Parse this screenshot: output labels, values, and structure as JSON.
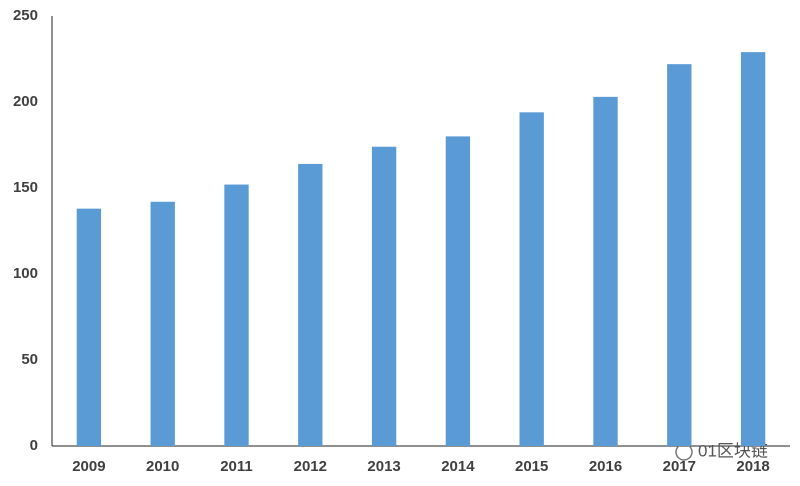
{
  "chart_data": {
    "type": "bar",
    "categories": [
      "2009",
      "2010",
      "2011",
      "2012",
      "2013",
      "2014",
      "2015",
      "2016",
      "2017",
      "2018"
    ],
    "values": [
      138,
      142,
      152,
      164,
      174,
      180,
      194,
      203,
      222,
      229
    ],
    "color": "#5b9bd5",
    "ylim": [
      0,
      250
    ],
    "yticks": [
      0,
      50,
      100,
      150,
      200,
      250
    ],
    "grid": false
  },
  "watermark": "01区块链"
}
